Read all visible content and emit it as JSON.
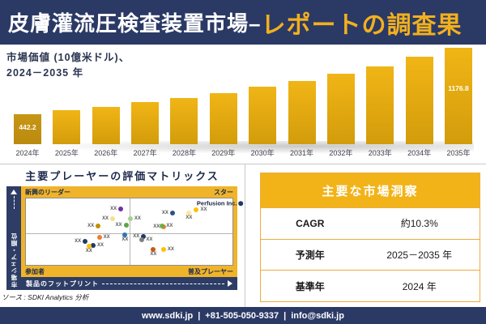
{
  "banner": {
    "title_white": "皮膚灌流圧検査装置市場–",
    "title_gold": "レポートの調査果"
  },
  "bar_chart_title": {
    "line1": "市場価値 (10億米ドル)、",
    "line2": "2024－2035 年"
  },
  "chart_data": [
    {
      "type": "bar",
      "title": "市場価値 (10億米ドル)、2024－2035 年",
      "categories": [
        "2024年",
        "2025年",
        "2026年",
        "2027年",
        "2028年",
        "2029年",
        "2030年",
        "2031年",
        "2032年",
        "2033年",
        "2034年",
        "2035年"
      ],
      "values": [
        442.2,
        487.0,
        522.8,
        576.6,
        621.4,
        675.1,
        746.8,
        809.5,
        890.1,
        970.8,
        1078.3,
        1176.8
      ],
      "visible_value_labels": {
        "0": "442.2",
        "11": "1176.8"
      },
      "bar_color": "#E8AC12",
      "first_bar_color": "#C09110",
      "xlabel": "",
      "ylabel": "",
      "ylim": [
        0,
        1250
      ],
      "grid": false,
      "legend": "none"
    },
    {
      "type": "scatter",
      "title": "主要プレーヤーの評価マトリックス",
      "quadrant_labels": {
        "top_left": "新興のリーダー",
        "top_right": "スター",
        "bottom_left": "参加者",
        "bottom_right": "普及プレーヤー"
      },
      "xlabel": "製品のフットプリント",
      "ylabel": "市場シェア・順位",
      "highlighted_company": "Perfusion Inc.",
      "points": [
        {
          "x": 44.0,
          "y": 16.0,
          "color": "#7030A0",
          "label": "XX",
          "label_pos": "left"
        },
        {
          "x": 40.0,
          "y": 30.0,
          "color": "#F5E08E",
          "label": "XX",
          "label_pos": "left"
        },
        {
          "x": 33.0,
          "y": 42.0,
          "color": "#BF8F00",
          "label": "XX",
          "label_pos": "left"
        },
        {
          "x": 46.5,
          "y": 40.0,
          "color": "#5BA646",
          "label": "XX",
          "label_pos": "left"
        },
        {
          "x": 52.5,
          "y": 30.0,
          "color": "#A9D18E",
          "label": "XX",
          "label_pos": "right"
        },
        {
          "x": 69.0,
          "y": 22.0,
          "color": "#2F4E8C",
          "label": "XX",
          "label_pos": "left"
        },
        {
          "x": 64.8,
          "y": 43.0,
          "color": "#ED7D31",
          "label": "XX",
          "label_pos": "left"
        },
        {
          "x": 68.0,
          "y": 41.5,
          "color": "#70AD47",
          "label": "XX",
          "label_pos": "right"
        },
        {
          "x": 79.0,
          "y": 25.0,
          "color": "#FFE699",
          "label": "XX",
          "label_pos": "below"
        },
        {
          "x": 84.5,
          "y": 17.5,
          "color": "#FFC000",
          "label": "XX",
          "label_pos": "right"
        },
        {
          "x": 94.0,
          "y": 7.5,
          "color": "#1F3864",
          "label": "Perfusion Inc.",
          "label_pos": "left"
        },
        {
          "x": 26.7,
          "y": 65.0,
          "color": "#1F3864",
          "label": "XX",
          "label_pos": "left"
        },
        {
          "x": 37.5,
          "y": 59.0,
          "color": "#ED7D31",
          "label": "XX",
          "label_pos": "right"
        },
        {
          "x": 48.0,
          "y": 59.0,
          "color": "#2E75B6",
          "label": "XX",
          "label_pos": "below"
        },
        {
          "x": 34.5,
          "y": 71.0,
          "color": "#1F3864",
          "label": "XX",
          "label_pos": "right"
        },
        {
          "x": 30.5,
          "y": 75.5,
          "color": "#FFC000",
          "label": "XX",
          "label_pos": "below"
        },
        {
          "x": 55.0,
          "y": 57.0,
          "color": "#1F3864",
          "label": "XX",
          "label_pos": "left"
        },
        {
          "x": 58.2,
          "y": 62.5,
          "color": "#808080",
          "label": "XX",
          "label_pos": "right"
        },
        {
          "x": 61.7,
          "y": 80.5,
          "color": "#C55A11",
          "label": "XX",
          "label_pos": "below"
        },
        {
          "x": 68.6,
          "y": 77.0,
          "color": "#FFC000",
          "label": "XX",
          "label_pos": "right"
        }
      ]
    }
  ],
  "matrix": {
    "heading": "主要プレーヤーの評価マトリックス",
    "source": "ソース : SDKI Analytics 分析"
  },
  "insights": {
    "header": "主要な市場洞察",
    "rows": [
      {
        "label": "CAGR",
        "value": "約10.3%"
      },
      {
        "label": "予測年",
        "value": "2025－2035 年"
      },
      {
        "label": "基準年",
        "value": "2024 年"
      }
    ]
  },
  "footer": {
    "website": "www.sdki.jp",
    "separator": "|",
    "phone": "+81-505-050-9337",
    "email": "info@sdki.jp"
  },
  "colors": {
    "navy": "#2B3965",
    "gold": "#F0B42A",
    "title_gold": "#F2B01E"
  }
}
